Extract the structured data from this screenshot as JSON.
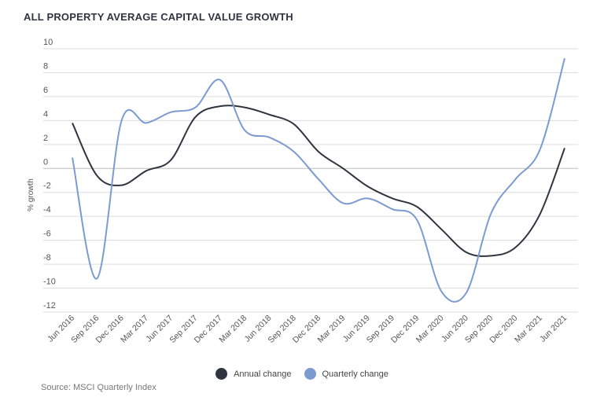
{
  "title": "ALL PROPERTY AVERAGE CAPITAL VALUE GROWTH",
  "source": "Source: MSCI Quarterly Index",
  "chart_data": {
    "type": "line",
    "title": "ALL PROPERTY AVERAGE CAPITAL VALUE GROWTH",
    "xlabel": "",
    "ylabel": "% growth",
    "ylim": [
      -12,
      10
    ],
    "yticks": [
      10,
      8,
      6,
      4,
      2,
      0,
      -2,
      -4,
      -6,
      -8,
      -10,
      -12
    ],
    "grid": true,
    "legend_position": "bottom",
    "categories": [
      "Jun 2016",
      "Sep 2016",
      "Dec 2016",
      "Mar 2017",
      "Jun 2017",
      "Sep 2017",
      "Dec 2017",
      "Mar 2018",
      "Jun 2018",
      "Sep 2018",
      "Dec 2018",
      "Mar 2019",
      "Jun 2019",
      "Sep 2019",
      "Dec 2019",
      "Mar 2020",
      "Jun 2020",
      "Sep 2020",
      "Dec 2020",
      "Mar 2021",
      "Jun 2021"
    ],
    "series": [
      {
        "name": "Annual change",
        "color": "#2f3540",
        "values": [
          3.8,
          -0.6,
          -1.4,
          -0.2,
          0.7,
          4.3,
          5.2,
          5.1,
          4.5,
          3.7,
          1.4,
          0.0,
          -1.5,
          -2.5,
          -3.2,
          -5.1,
          -7.0,
          -7.3,
          -6.6,
          -3.8,
          1.7
        ]
      },
      {
        "name": "Quarterly change",
        "color": "#7b9bd1",
        "values": [
          0.9,
          -9.2,
          4.0,
          3.8,
          4.7,
          5.1,
          7.4,
          3.2,
          2.6,
          1.4,
          -0.9,
          -2.9,
          -2.5,
          -3.4,
          -4.3,
          -10.3,
          -10.4,
          -3.8,
          -0.9,
          1.6,
          9.2
        ]
      }
    ]
  }
}
